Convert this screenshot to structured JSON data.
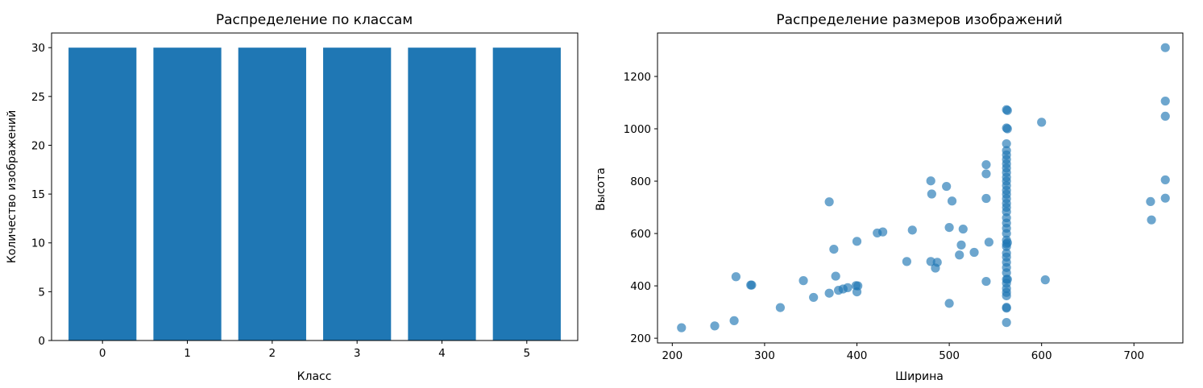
{
  "chart_data": [
    {
      "type": "bar",
      "title": "Распределение по классам",
      "xlabel": "Класс",
      "ylabel": "Количество изображений",
      "categories": [
        "0",
        "1",
        "2",
        "3",
        "4",
        "5"
      ],
      "values": [
        30,
        30,
        30,
        30,
        30,
        30
      ],
      "ylim": [
        0,
        31.5
      ],
      "yticks": [
        0,
        5,
        10,
        15,
        20,
        25,
        30
      ],
      "color": "#1f77b4",
      "grid": false
    },
    {
      "type": "scatter",
      "title": "Распределение размеров изображений",
      "xlabel": "Ширина",
      "ylabel": "Высота",
      "xlim": [
        184,
        753
      ],
      "ylim": [
        182,
        1366
      ],
      "xticks": [
        200,
        300,
        400,
        500,
        600,
        700
      ],
      "yticks": [
        200,
        400,
        600,
        800,
        1000,
        1200
      ],
      "color": "#1f77b4",
      "alpha": 0.65,
      "grid": false,
      "points": [
        [
          210,
          240
        ],
        [
          246,
          247
        ],
        [
          267,
          267
        ],
        [
          269,
          435
        ],
        [
          285,
          403
        ],
        [
          286,
          403
        ],
        [
          317,
          317
        ],
        [
          342,
          420
        ],
        [
          353,
          356
        ],
        [
          370,
          721
        ],
        [
          370,
          372
        ],
        [
          375,
          540
        ],
        [
          377,
          437
        ],
        [
          380,
          383
        ],
        [
          385,
          388
        ],
        [
          390,
          393
        ],
        [
          399,
          401
        ],
        [
          400,
          570
        ],
        [
          400,
          377
        ],
        [
          401,
          400
        ],
        [
          422,
          602
        ],
        [
          428,
          606
        ],
        [
          460,
          613
        ],
        [
          454,
          493
        ],
        [
          480,
          801
        ],
        [
          481,
          751
        ],
        [
          480,
          493
        ],
        [
          485,
          468
        ],
        [
          487,
          490
        ],
        [
          497,
          780
        ],
        [
          500,
          623
        ],
        [
          500,
          333
        ],
        [
          503,
          724
        ],
        [
          511,
          518
        ],
        [
          513,
          556
        ],
        [
          515,
          617
        ],
        [
          527,
          528
        ],
        [
          540,
          863
        ],
        [
          540,
          828
        ],
        [
          540,
          734
        ],
        [
          540,
          417
        ],
        [
          543,
          567
        ],
        [
          562,
          1073
        ],
        [
          562,
          1003
        ],
        [
          562,
          943
        ],
        [
          562,
          917
        ],
        [
          562,
          900
        ],
        [
          562,
          883
        ],
        [
          562,
          866
        ],
        [
          562,
          850
        ],
        [
          562,
          833
        ],
        [
          562,
          815
        ],
        [
          562,
          800
        ],
        [
          562,
          783
        ],
        [
          562,
          765
        ],
        [
          562,
          750
        ],
        [
          562,
          733
        ],
        [
          562,
          715
        ],
        [
          562,
          700
        ],
        [
          562,
          683
        ],
        [
          562,
          660
        ],
        [
          562,
          640
        ],
        [
          562,
          620
        ],
        [
          562,
          600
        ],
        [
          562,
          575
        ],
        [
          562,
          560
        ],
        [
          562,
          550
        ],
        [
          562,
          525
        ],
        [
          562,
          510
        ],
        [
          562,
          490
        ],
        [
          562,
          470
        ],
        [
          562,
          450
        ],
        [
          562,
          425
        ],
        [
          562,
          410
        ],
        [
          562,
          390
        ],
        [
          562,
          375
        ],
        [
          562,
          362
        ],
        [
          562,
          318
        ],
        [
          562,
          315
        ],
        [
          562,
          260
        ],
        [
          563,
          1070
        ],
        [
          563,
          1000
        ],
        [
          563,
          565
        ],
        [
          563,
          425
        ],
        [
          600,
          1025
        ],
        [
          604,
          423
        ],
        [
          718,
          722
        ],
        [
          719,
          652
        ],
        [
          734,
          1310
        ],
        [
          734,
          1106
        ],
        [
          734,
          1048
        ],
        [
          734,
          805
        ],
        [
          734,
          735
        ]
      ]
    }
  ]
}
